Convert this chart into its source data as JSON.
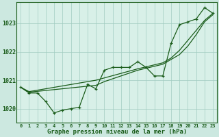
{
  "xlabel": "Graphe pression niveau de la mer (hPa)",
  "ylim": [
    1019.5,
    1023.75
  ],
  "xlim": [
    -0.5,
    23.5
  ],
  "yticks": [
    1020,
    1021,
    1022,
    1023
  ],
  "xticks": [
    0,
    1,
    2,
    3,
    4,
    5,
    6,
    7,
    8,
    9,
    10,
    11,
    12,
    13,
    14,
    15,
    16,
    17,
    18,
    19,
    20,
    21,
    22,
    23
  ],
  "background_color": "#cce8e0",
  "plot_bg_color": "#d8f0e8",
  "line_color": "#1a5c1a",
  "grid_color": "#a0ccc0",
  "series1_y": [
    1020.75,
    1020.55,
    1020.55,
    1020.25,
    1019.85,
    1019.95,
    1020.0,
    1020.05,
    1020.85,
    1020.7,
    1021.35,
    1021.45,
    1021.45,
    1021.45,
    1021.65,
    1021.45,
    1021.15,
    1021.15,
    1022.3,
    1022.95,
    1023.05,
    1023.15,
    1023.55,
    1023.35
  ],
  "series2_y": [
    1020.75,
    1020.58,
    1020.61,
    1020.64,
    1020.67,
    1020.7,
    1020.73,
    1020.76,
    1020.79,
    1020.82,
    1020.95,
    1021.05,
    1021.15,
    1021.25,
    1021.35,
    1021.42,
    1021.49,
    1021.56,
    1021.73,
    1021.9,
    1022.2,
    1022.6,
    1023.05,
    1023.3
  ],
  "series3_y": [
    1020.75,
    1020.6,
    1020.65,
    1020.7,
    1020.75,
    1020.8,
    1020.85,
    1020.9,
    1020.95,
    1021.0,
    1021.08,
    1021.16,
    1021.24,
    1021.32,
    1021.4,
    1021.47,
    1021.54,
    1021.61,
    1021.78,
    1022.05,
    1022.4,
    1022.75,
    1023.1,
    1023.35
  ]
}
